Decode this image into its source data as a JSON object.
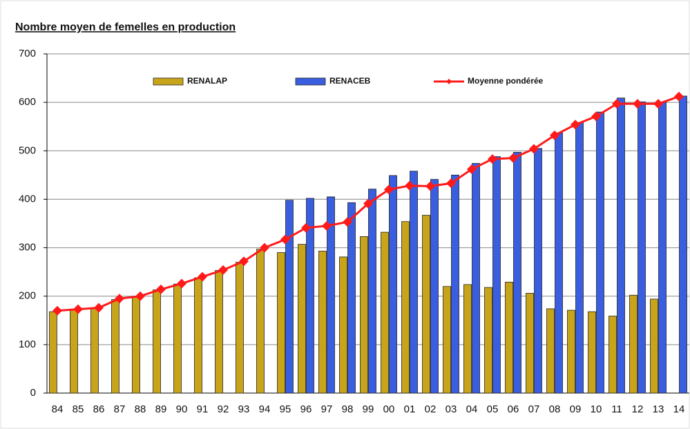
{
  "chart_data": {
    "type": "bar",
    "title": "Nombre moyen de femelles en production",
    "categories": [
      "84",
      "85",
      "86",
      "87",
      "88",
      "89",
      "90",
      "91",
      "92",
      "93",
      "94",
      "95",
      "96",
      "97",
      "98",
      "99",
      "00",
      "01",
      "02",
      "03",
      "04",
      "05",
      "06",
      "07",
      "08",
      "09",
      "10",
      "11",
      "12",
      "13",
      "14"
    ],
    "series": [
      {
        "name": "RENALAP",
        "type": "bar",
        "color": "#c8a41a",
        "values": [
          168,
          172,
          175,
          193,
          200,
          213,
          225,
          238,
          253,
          270,
          297,
          290,
          307,
          293,
          281,
          323,
          332,
          354,
          367,
          220,
          224,
          218,
          229,
          206,
          174,
          171,
          168,
          159,
          202,
          194,
          null
        ]
      },
      {
        "name": "RENACEB",
        "type": "bar",
        "color": "#3a5ee0",
        "values": [
          null,
          null,
          null,
          null,
          null,
          null,
          null,
          null,
          null,
          null,
          null,
          398,
          402,
          405,
          393,
          421,
          449,
          458,
          441,
          450,
          474,
          488,
          497,
          505,
          537,
          558,
          580,
          609,
          601,
          601,
          613
        ]
      },
      {
        "name": "Moyenne pondérée",
        "type": "line",
        "color": "#ff1a1a",
        "values": [
          170,
          173,
          176,
          195,
          200,
          214,
          226,
          240,
          254,
          272,
          300,
          317,
          341,
          345,
          353,
          391,
          420,
          428,
          427,
          433,
          462,
          483,
          485,
          504,
          532,
          554,
          571,
          597,
          597,
          597,
          612
        ]
      }
    ],
    "ylim": [
      0,
      700
    ],
    "yticks": [
      0,
      100,
      200,
      300,
      400,
      500,
      600,
      700
    ],
    "grid": true
  }
}
